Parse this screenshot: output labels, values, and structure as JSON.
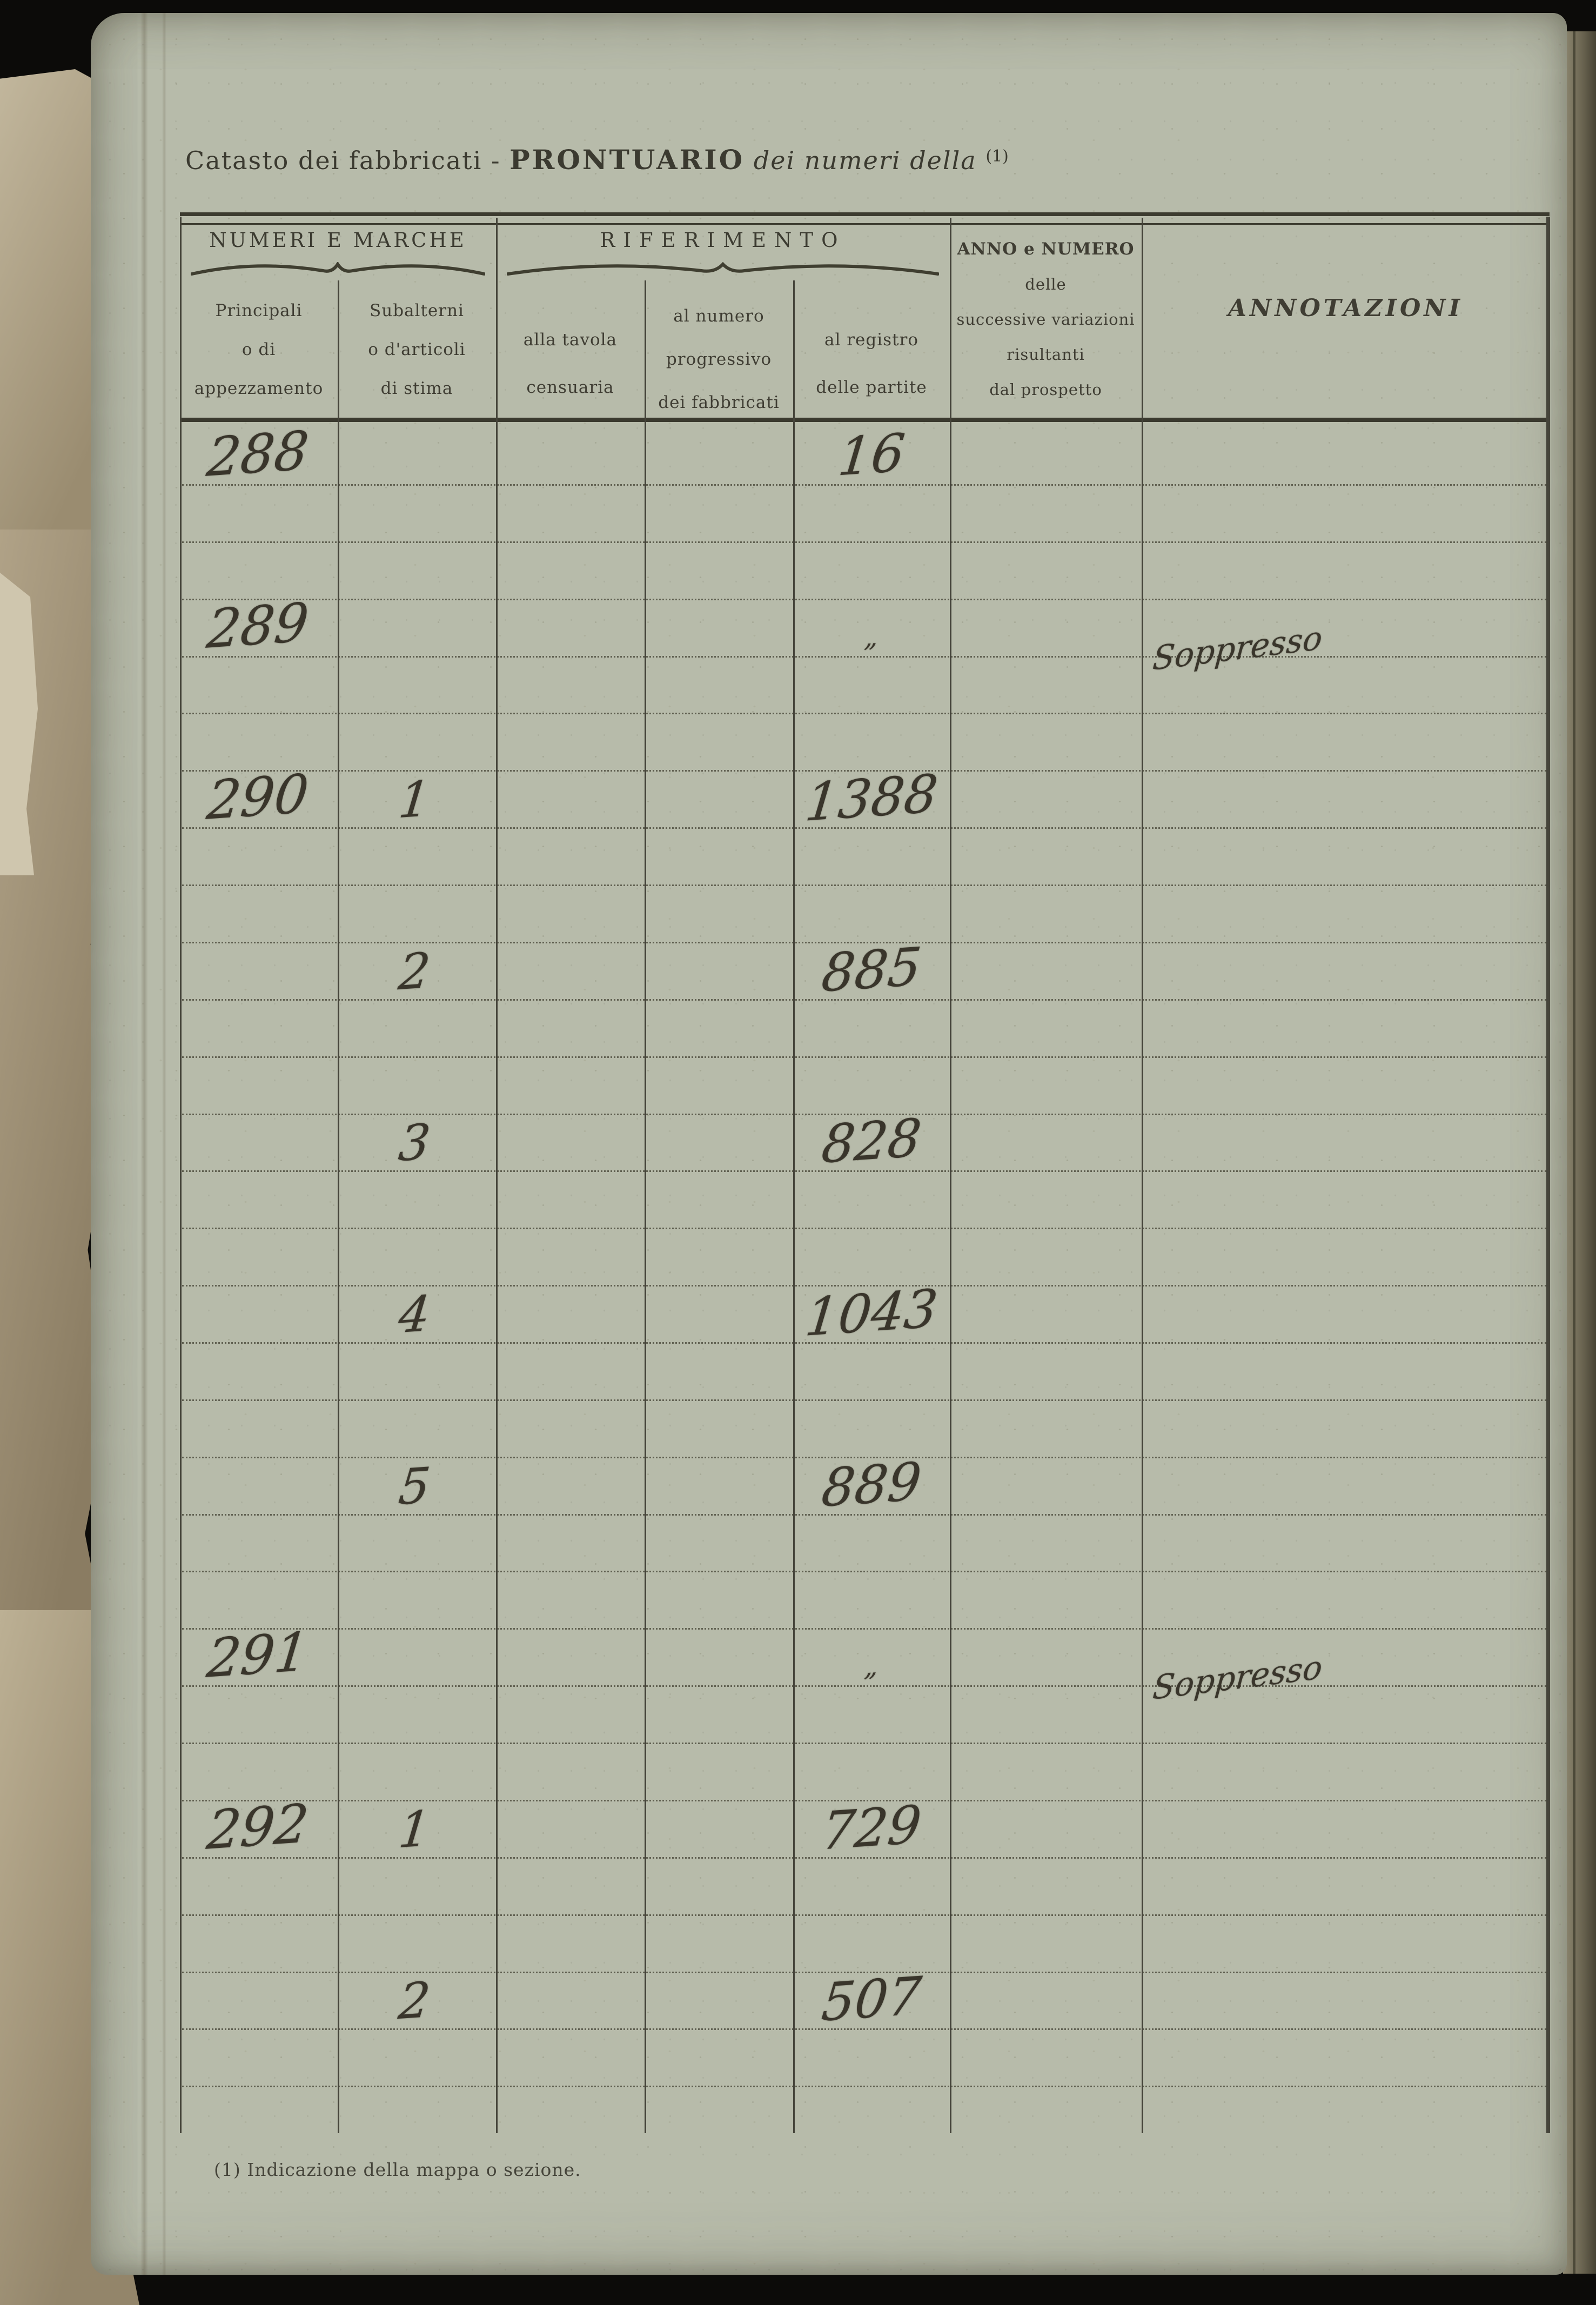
{
  "document": {
    "title": {
      "prefix": "Catasto dei fabbricati - ",
      "main": "PRONTUARIO",
      "italic_suffix": " dei numeri della ",
      "footnote_ref": "(1)"
    },
    "footnote": "(1) Indicazione della mappa o sezione."
  },
  "table": {
    "group_headers": [
      {
        "label": "NUMERI E MARCHE"
      },
      {
        "label": "RIFERIMENTO"
      }
    ],
    "columns": [
      {
        "id": "principali",
        "header_lines": [
          "Principali",
          "o di",
          "appezzamento"
        ]
      },
      {
        "id": "subalterni",
        "header_lines": [
          "Subalterni",
          "o d'articoli",
          "di stima"
        ]
      },
      {
        "id": "tavola",
        "header_lines": [
          "alla tavola",
          "censuaria"
        ]
      },
      {
        "id": "progressivo",
        "header_lines": [
          "al numero",
          "progressivo",
          "dei fabbricati"
        ]
      },
      {
        "id": "registro",
        "header_lines": [
          "al registro",
          "delle partite"
        ]
      },
      {
        "id": "variazioni",
        "header_lines": [
          "ANNO e NUMERO",
          "delle",
          "successive variazioni",
          "risultanti",
          "dal prospetto"
        ]
      },
      {
        "id": "annotazioni",
        "header_lines": [
          "ANNOTAZIONI"
        ]
      }
    ],
    "rows": [
      {
        "principali": "288",
        "subalterni": "",
        "tavola": "",
        "progressivo": "",
        "registro": "16",
        "variazioni": "",
        "annotazioni": ""
      },
      {
        "principali": "289",
        "subalterni": "",
        "tavola": "",
        "progressivo": "",
        "registro": "„",
        "variazioni": "",
        "annotazioni": "Soppresso"
      },
      {
        "principali": "290",
        "subalterni": "1",
        "tavola": "",
        "progressivo": "",
        "registro": "1388",
        "variazioni": "",
        "annotazioni": ""
      },
      {
        "principali": "",
        "subalterni": "2",
        "tavola": "",
        "progressivo": "",
        "registro": "885",
        "variazioni": "",
        "annotazioni": ""
      },
      {
        "principali": "",
        "subalterni": "3",
        "tavola": "",
        "progressivo": "",
        "registro": "828",
        "variazioni": "",
        "annotazioni": ""
      },
      {
        "principali": "",
        "subalterni": "4",
        "tavola": "",
        "progressivo": "",
        "registro": "1043",
        "variazioni": "",
        "annotazioni": ""
      },
      {
        "principali": "",
        "subalterni": "5",
        "tavola": "",
        "progressivo": "",
        "registro": "889",
        "variazioni": "",
        "annotazioni": ""
      },
      {
        "principali": "291",
        "subalterni": "",
        "tavola": "",
        "progressivo": "",
        "registro": "„",
        "variazioni": "",
        "annotazioni": "Soppresso"
      },
      {
        "principali": "292",
        "subalterni": "1",
        "tavola": "",
        "progressivo": "",
        "registro": "729",
        "variazioni": "",
        "annotazioni": ""
      },
      {
        "principali": "",
        "subalterni": "2",
        "tavola": "",
        "progressivo": "",
        "registro": "507",
        "variazioni": "",
        "annotazioni": ""
      }
    ]
  },
  "colors": {
    "background": "#0c0b09",
    "paper": "#b7bbaa",
    "printed_ink": "#3b3a30",
    "rule": "#45443a",
    "handwriting_ink": "#39352b",
    "torn_paper": "#a3947a"
  }
}
